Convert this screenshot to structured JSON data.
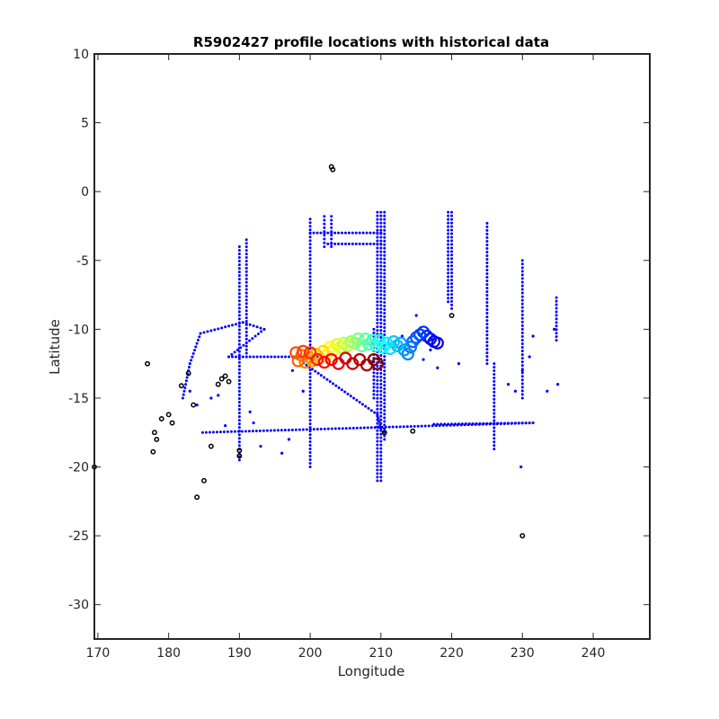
{
  "chart_data": {
    "type": "scatter",
    "title": "R5902427 profile locations with historical data",
    "xlabel": "Longitude",
    "ylabel": "Latitude",
    "xlim": [
      169.5,
      248
    ],
    "ylim": [
      -32.5,
      10
    ],
    "xticks": [
      170,
      180,
      190,
      200,
      210,
      220,
      230,
      240
    ],
    "yticks": [
      10,
      5,
      0,
      -5,
      -10,
      -15,
      -20,
      -25,
      -30
    ],
    "grid": false,
    "box": true,
    "colors": {
      "historical": "#0000ff",
      "coastline": "#000000",
      "track_start": "#0000ff",
      "track_end": "#800000"
    },
    "series": [
      {
        "kind": "track_lines",
        "color": "#0000ff",
        "lines": [
          [
            [
              184.8,
              -17.5
            ],
            [
              231.5,
              -16.8
            ]
          ],
          [
            [
              217.5,
              -16.9
            ],
            [
              231.5,
              -16.8
            ]
          ],
          [
            [
              197.8,
              -12.0
            ],
            [
              209.5,
              -16.2
            ]
          ],
          [
            [
              209.5,
              -16.2
            ],
            [
              210.0,
              -17.2
            ]
          ],
          [
            [
              184.5,
              -10.3
            ],
            [
              190.5,
              -9.5
            ],
            [
              193.5,
              -10.0
            ],
            [
              188.5,
              -12.0
            ],
            [
              201.0,
              -12.0
            ]
          ],
          [
            [
              184.5,
              -10.3
            ],
            [
              183.0,
              -12.5
            ],
            [
              182.0,
              -15.0
            ]
          ],
          [
            [
              200.0,
              -3.0
            ],
            [
              210.0,
              -3.0
            ]
          ],
          [
            [
              202.5,
              -3.8
            ],
            [
              210.0,
              -3.8
            ]
          ],
          [
            [
              209.0,
              -10.0
            ],
            [
              209.0,
              -15.0
            ]
          ]
        ]
      },
      {
        "kind": "vertical_transects",
        "color": "#0000ff",
        "transects": [
          {
            "x": 190.0,
            "y": [
              -19.5,
              -4.0
            ]
          },
          {
            "x": 191.0,
            "y": [
              -12.0,
              -3.5
            ]
          },
          {
            "x": 200.0,
            "y": [
              -20.0,
              -2.0
            ]
          },
          {
            "x": 202.0,
            "y": [
              -4.0,
              -1.8
            ]
          },
          {
            "x": 203.0,
            "y": [
              -4.0,
              -1.8
            ]
          },
          {
            "x": 209.5,
            "y": [
              -21.0,
              -1.5
            ]
          },
          {
            "x": 210.0,
            "y": [
              -21.0,
              -1.5
            ]
          },
          {
            "x": 210.5,
            "y": [
              -18.0,
              -1.5
            ]
          },
          {
            "x": 219.5,
            "y": [
              -8.0,
              -1.5
            ]
          },
          {
            "x": 220.0,
            "y": [
              -8.5,
              -1.5
            ]
          },
          {
            "x": 225.0,
            "y": [
              -12.5,
              -2.3
            ]
          },
          {
            "x": 226.0,
            "y": [
              -18.7,
              -12.5
            ]
          },
          {
            "x": 230.0,
            "y": [
              -15.0,
              -5.0
            ]
          },
          {
            "x": 234.8,
            "y": [
              -10.8,
              -7.7
            ]
          }
        ]
      },
      {
        "kind": "scattered_points",
        "color": "#0000ff",
        "points": [
          [
            183.0,
            -14.5
          ],
          [
            184.0,
            -15.5
          ],
          [
            186.0,
            -15.0
          ],
          [
            187.0,
            -14.8
          ],
          [
            188.0,
            -17.0
          ],
          [
            191.5,
            -16.0
          ],
          [
            192.0,
            -16.8
          ],
          [
            193.0,
            -18.5
          ],
          [
            196.0,
            -19.0
          ],
          [
            197.0,
            -18.0
          ],
          [
            208.0,
            -11.0
          ],
          [
            216.0,
            -12.2
          ],
          [
            217.0,
            -11.5
          ],
          [
            218.0,
            -12.8
          ],
          [
            221.0,
            -12.5
          ],
          [
            228.0,
            -14.0
          ],
          [
            229.0,
            -14.5
          ],
          [
            230.0,
            -13.0
          ],
          [
            231.5,
            -10.5
          ],
          [
            233.5,
            -14.5
          ],
          [
            234.5,
            -10.0
          ],
          [
            235.0,
            -14.0
          ],
          [
            231.0,
            -12.0
          ],
          [
            229.8,
            -20.0
          ],
          [
            213.0,
            -10.5
          ],
          [
            215.0,
            -9.0
          ],
          [
            197.5,
            -13.0
          ],
          [
            199.0,
            -14.5
          ]
        ]
      },
      {
        "kind": "coastline",
        "color": "#000000",
        "points": [
          [
            169.5,
            -20.0
          ],
          [
            177.0,
            -12.5
          ],
          [
            178.0,
            -17.5
          ],
          [
            178.3,
            -18.0
          ],
          [
            177.8,
            -18.9
          ],
          [
            179.0,
            -16.5
          ],
          [
            180.0,
            -16.2
          ],
          [
            180.5,
            -16.8
          ],
          [
            181.8,
            -14.1
          ],
          [
            182.8,
            -13.2
          ],
          [
            183.5,
            -15.5
          ],
          [
            184.0,
            -22.2
          ],
          [
            185.0,
            -21.0
          ],
          [
            186.0,
            -18.5
          ],
          [
            187.0,
            -14.0
          ],
          [
            187.5,
            -13.6
          ],
          [
            188.0,
            -13.4
          ],
          [
            188.5,
            -13.8
          ],
          [
            190.0,
            -18.8
          ],
          [
            190.0,
            -19.2
          ],
          [
            203.0,
            1.8
          ],
          [
            203.2,
            1.6
          ],
          [
            210.5,
            -17.5
          ],
          [
            214.5,
            -17.4
          ],
          [
            220.0,
            -9.0
          ],
          [
            230.0,
            -25.0
          ]
        ]
      },
      {
        "kind": "float_profiles",
        "marker": "open-circle",
        "colorscale": "jet-reversed (blue = earliest, dark red = latest)",
        "points": [
          [
            218.0,
            -11.0
          ],
          [
            217.5,
            -10.9
          ],
          [
            217.0,
            -10.7
          ],
          [
            216.5,
            -10.5
          ],
          [
            216.0,
            -10.2
          ],
          [
            215.5,
            -10.4
          ],
          [
            215.0,
            -10.6
          ],
          [
            214.5,
            -10.9
          ],
          [
            214.2,
            -11.3
          ],
          [
            213.8,
            -11.8
          ],
          [
            213.3,
            -11.5
          ],
          [
            212.8,
            -11.0
          ],
          [
            212.3,
            -11.2
          ],
          [
            211.8,
            -10.9
          ],
          [
            211.3,
            -11.4
          ],
          [
            210.8,
            -11.0
          ],
          [
            210.3,
            -11.3
          ],
          [
            209.8,
            -10.8
          ],
          [
            209.3,
            -11.2
          ],
          [
            208.8,
            -10.8
          ],
          [
            208.3,
            -11.1
          ],
          [
            207.8,
            -10.7
          ],
          [
            207.3,
            -11.2
          ],
          [
            206.8,
            -10.7
          ],
          [
            206.3,
            -11.0
          ],
          [
            205.8,
            -10.9
          ],
          [
            205.3,
            -11.2
          ],
          [
            204.8,
            -11.0
          ],
          [
            204.3,
            -11.3
          ],
          [
            203.8,
            -11.1
          ],
          [
            203.3,
            -11.5
          ],
          [
            202.8,
            -11.3
          ],
          [
            202.3,
            -11.9
          ],
          [
            201.8,
            -11.6
          ],
          [
            201.3,
            -12.1
          ],
          [
            200.8,
            -11.8
          ],
          [
            200.3,
            -12.3
          ],
          [
            199.8,
            -12.0
          ],
          [
            199.3,
            -12.4
          ],
          [
            198.8,
            -11.9
          ],
          [
            198.3,
            -12.3
          ],
          [
            198.0,
            -11.7
          ],
          [
            199.0,
            -11.6
          ],
          [
            200.0,
            -11.7
          ],
          [
            201.0,
            -12.2
          ],
          [
            202.0,
            -12.4
          ],
          [
            203.0,
            -12.2
          ],
          [
            204.0,
            -12.5
          ],
          [
            205.0,
            -12.1
          ],
          [
            206.0,
            -12.5
          ],
          [
            207.0,
            -12.2
          ],
          [
            208.0,
            -12.6
          ],
          [
            209.0,
            -12.2
          ],
          [
            209.5,
            -12.5
          ]
        ]
      }
    ]
  }
}
